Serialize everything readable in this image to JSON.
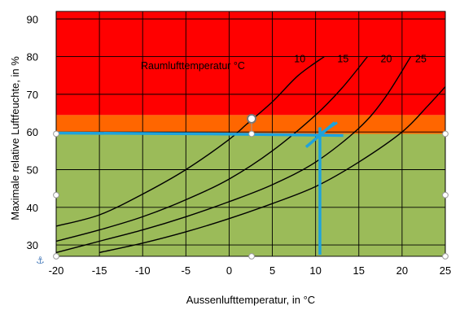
{
  "chart_data": {
    "type": "line",
    "xlabel": "Aussenlufttemperatur, in °C",
    "ylabel": "Maximale relative Luftfeuchte, in %",
    "xlim": [
      -20,
      25
    ],
    "ylim": [
      27,
      92
    ],
    "xticks": [
      -20,
      -15,
      -10,
      -5,
      0,
      5,
      10,
      15,
      20,
      25
    ],
    "yticks": [
      30,
      40,
      50,
      60,
      70,
      80,
      90
    ],
    "grid": true,
    "zones": [
      {
        "name": "green",
        "from": 27,
        "to": 59.5,
        "color": "#9bbb59"
      },
      {
        "name": "orange",
        "from": 59.5,
        "to": 64.5,
        "color": "#ff6600"
      },
      {
        "name": "red",
        "from": 64.5,
        "to": 92,
        "color": "#ff0000"
      }
    ],
    "legend_title": "Raumlufttemperatur °C",
    "series": [
      {
        "name": "10",
        "x": [
          -20,
          -15,
          -10,
          -5,
          0,
          2,
          5,
          8,
          11
        ],
        "y": [
          35,
          38,
          43.5,
          50,
          58,
          62,
          68,
          75,
          80
        ]
      },
      {
        "name": "15",
        "x": [
          -20,
          -15,
          -10,
          -5,
          0,
          5,
          10,
          13,
          16
        ],
        "y": [
          31,
          34,
          37.5,
          42,
          47.5,
          55,
          64.5,
          71.5,
          80
        ]
      },
      {
        "name": "20",
        "x": [
          -20,
          -15,
          -10,
          -5,
          0,
          5,
          10,
          15,
          18,
          21
        ],
        "y": [
          28,
          31,
          34,
          37.5,
          41.5,
          46,
          52,
          61,
          69,
          80
        ]
      },
      {
        "name": "25",
        "x": [
          -15,
          -10,
          -5,
          0,
          5,
          10,
          15,
          20,
          23,
          25
        ],
        "y": [
          28,
          30.5,
          33.5,
          37,
          41,
          45.5,
          52,
          60,
          67,
          72
        ]
      }
    ],
    "annotations": {
      "threshold_y": 59.5,
      "marker_x": 10.5,
      "line_color": "#1fa3dc"
    }
  }
}
